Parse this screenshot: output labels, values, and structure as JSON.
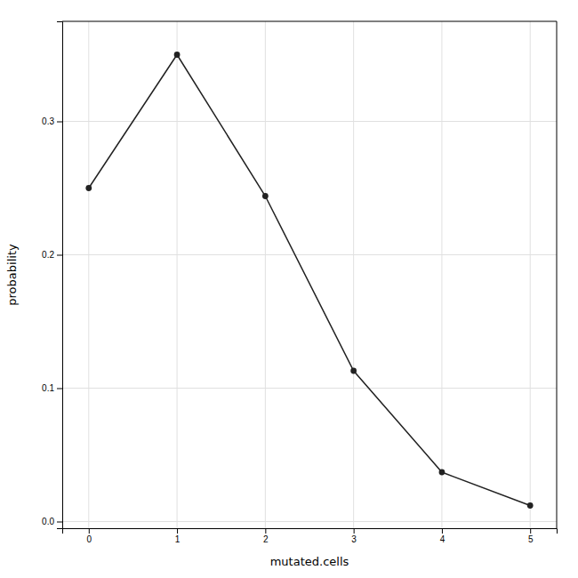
{
  "chart_data": {
    "type": "line",
    "x": [
      0,
      1,
      2,
      3,
      4,
      5
    ],
    "values": [
      0.25,
      0.35,
      0.244,
      0.113,
      0.037,
      0.012
    ],
    "xlabel": "mutated.cells",
    "ylabel": "probability",
    "xlim": [
      -0.3,
      5.3
    ],
    "ylim": [
      -0.005,
      0.375
    ],
    "xticks": [
      0,
      1,
      2,
      3,
      4,
      5
    ],
    "yticks": [
      {
        "value": 0,
        "label": "0.0"
      },
      0.1,
      0.2,
      0.3
    ],
    "color": "#222222",
    "marker": "circle",
    "grid": true
  }
}
